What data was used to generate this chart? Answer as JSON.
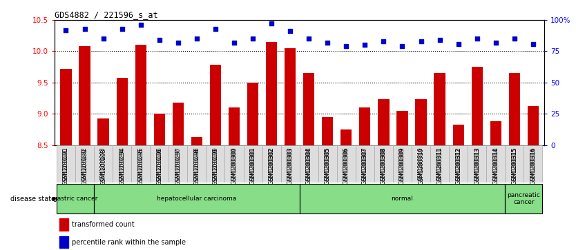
{
  "title": "GDS4882 / 221596_s_at",
  "samples": [
    "GSM1200291",
    "GSM1200292",
    "GSM1200293",
    "GSM1200294",
    "GSM1200295",
    "GSM1200296",
    "GSM1200297",
    "GSM1200298",
    "GSM1200299",
    "GSM1200300",
    "GSM1200301",
    "GSM1200302",
    "GSM1200303",
    "GSM1200304",
    "GSM1200305",
    "GSM1200306",
    "GSM1200307",
    "GSM1200308",
    "GSM1200309",
    "GSM1200310",
    "GSM1200311",
    "GSM1200312",
    "GSM1200313",
    "GSM1200314",
    "GSM1200315",
    "GSM1200316"
  ],
  "transformed_count": [
    9.72,
    10.08,
    8.93,
    9.58,
    10.1,
    9.0,
    9.18,
    8.63,
    9.78,
    9.1,
    9.5,
    10.15,
    10.05,
    9.65,
    8.95,
    8.75,
    9.1,
    9.23,
    9.05,
    9.23,
    9.65,
    8.82,
    9.75,
    8.88,
    9.65,
    9.12
  ],
  "percentile_rank": [
    92,
    93,
    85,
    93,
    96,
    84,
    82,
    85,
    93,
    82,
    85,
    97,
    91,
    85,
    82,
    79,
    80,
    83,
    79,
    83,
    84,
    81,
    85,
    82,
    85,
    81
  ],
  "ylim_left": [
    8.5,
    10.5
  ],
  "ylim_right": [
    0,
    100
  ],
  "yticks_left": [
    8.5,
    9.0,
    9.5,
    10.0,
    10.5
  ],
  "yticks_right": [
    0,
    25,
    50,
    75,
    100
  ],
  "bar_color": "#cc0000",
  "dot_color": "#0000cc",
  "disease_groups": [
    {
      "label": "gastric cancer",
      "start": 0,
      "end": 2,
      "color": "#88dd88"
    },
    {
      "label": "hepatocellular carcinoma",
      "start": 2,
      "end": 13,
      "color": "#88dd88"
    },
    {
      "label": "normal",
      "start": 13,
      "end": 24,
      "color": "#88dd88"
    },
    {
      "label": "pancreatic\ncancer",
      "start": 24,
      "end": 26,
      "color": "#88dd88"
    }
  ],
  "bar_width": 0.6
}
